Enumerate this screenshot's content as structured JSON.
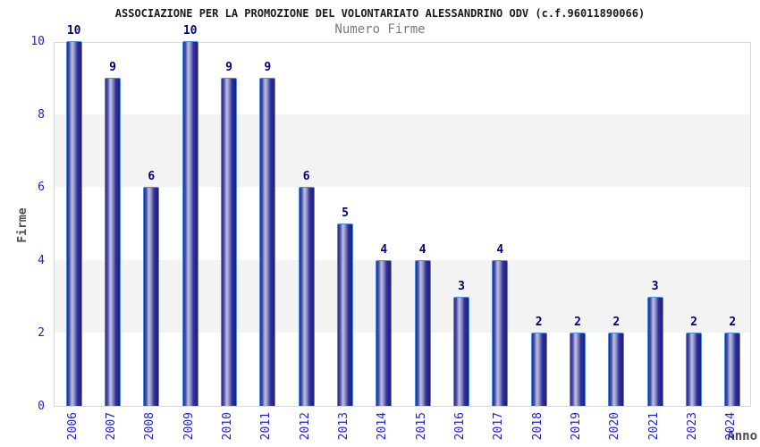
{
  "colors": {
    "title": "#1a1a1a",
    "subtitle": "#7a7a7a",
    "tick_blue": "#1f1fcd",
    "value_navy": "#00007a",
    "axis_title_gray": "#4d4d4d",
    "plot_border": "#d8d8d8",
    "band_gray": "#f3f3f3",
    "bar_border_blue": "#4a90e2",
    "bar_dark_navy": "#2a2a8f",
    "bar_light_blue": "#bfc3e2"
  },
  "chart_data": {
    "type": "bar",
    "title": "ASSOCIAZIONE PER LA PROMOZIONE DEL VOLONTARIATO ALESSANDRINO ODV (c.f.96011890066)",
    "subtitle": "Numero Firme",
    "xlabel": "Anno",
    "ylabel": "Firme",
    "categories": [
      "2006",
      "2007",
      "2008",
      "2009",
      "2010",
      "2011",
      "2012",
      "2013",
      "2014",
      "2015",
      "2016",
      "2017",
      "2018",
      "2019",
      "2020",
      "2021",
      "2023",
      "2024"
    ],
    "values": [
      10,
      9,
      6,
      10,
      9,
      9,
      6,
      5,
      4,
      4,
      3,
      4,
      2,
      2,
      2,
      3,
      2,
      2
    ],
    "ylim": [
      0,
      10
    ],
    "yticks": [
      0,
      2,
      4,
      6,
      8,
      10
    ],
    "shaded_bands": [
      [
        2,
        4
      ],
      [
        6,
        8
      ]
    ],
    "grid": "alternating horizontal gray bands",
    "legend": "none",
    "bar_value_labels": "above bars",
    "x_tick_rotation": -90,
    "note": "year 2022 absent from series"
  }
}
